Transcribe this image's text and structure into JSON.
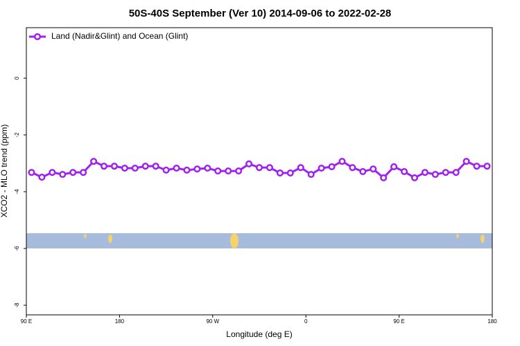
{
  "chart_data": {
    "type": "line",
    "title": "50S-40S September (Ver 10)   2014-09-06 to 2022-02-28",
    "x_label": "Longitude (deg E)",
    "y_label": "XCO2 - MLO trend (ppm)",
    "x": [
      95,
      105,
      115,
      125,
      135,
      145,
      155,
      165,
      175,
      185,
      195,
      205,
      215,
      225,
      235,
      245,
      255,
      265,
      275,
      285,
      295,
      305,
      315,
      325,
      335,
      345,
      355,
      365,
      375,
      385,
      395,
      405,
      415,
      425,
      435,
      445,
      455,
      465,
      475,
      485,
      495,
      505,
      515,
      525,
      535
    ],
    "series": [
      {
        "name": "Land (Nadir&Glint) and Ocean (Glint)",
        "color": "#a020f0",
        "values": [
          -3.32,
          -3.49,
          -3.32,
          -3.39,
          -3.32,
          -3.32,
          -2.93,
          -3.1,
          -3.1,
          -3.17,
          -3.17,
          -3.1,
          -3.1,
          -3.24,
          -3.17,
          -3.24,
          -3.2,
          -3.17,
          -3.27,
          -3.27,
          -3.27,
          -3.02,
          -3.15,
          -3.15,
          -3.34,
          -3.34,
          -3.15,
          -3.39,
          -3.17,
          -3.12,
          -2.93,
          -3.15,
          -3.29,
          -3.2,
          -3.51,
          -3.12,
          -3.29,
          -3.51,
          -3.32,
          -3.39,
          -3.32,
          -3.32,
          -2.93,
          -3.1,
          -3.1
        ]
      }
    ],
    "xlim": [
      90,
      540
    ],
    "xticks": [
      {
        "value": 90,
        "label": "90 E"
      },
      180,
      {
        "value": 270,
        "label": "90 W"
      },
      {
        "value": 360,
        "label": "0"
      },
      {
        "value": 450,
        "label": "90 E"
      },
      {
        "value": 540,
        "label": "180"
      }
    ],
    "ylim": [
      -8.34,
      1.78
    ],
    "yticks": [
      0,
      -2,
      -4,
      -6,
      -8
    ],
    "legend": "top-left"
  }
}
